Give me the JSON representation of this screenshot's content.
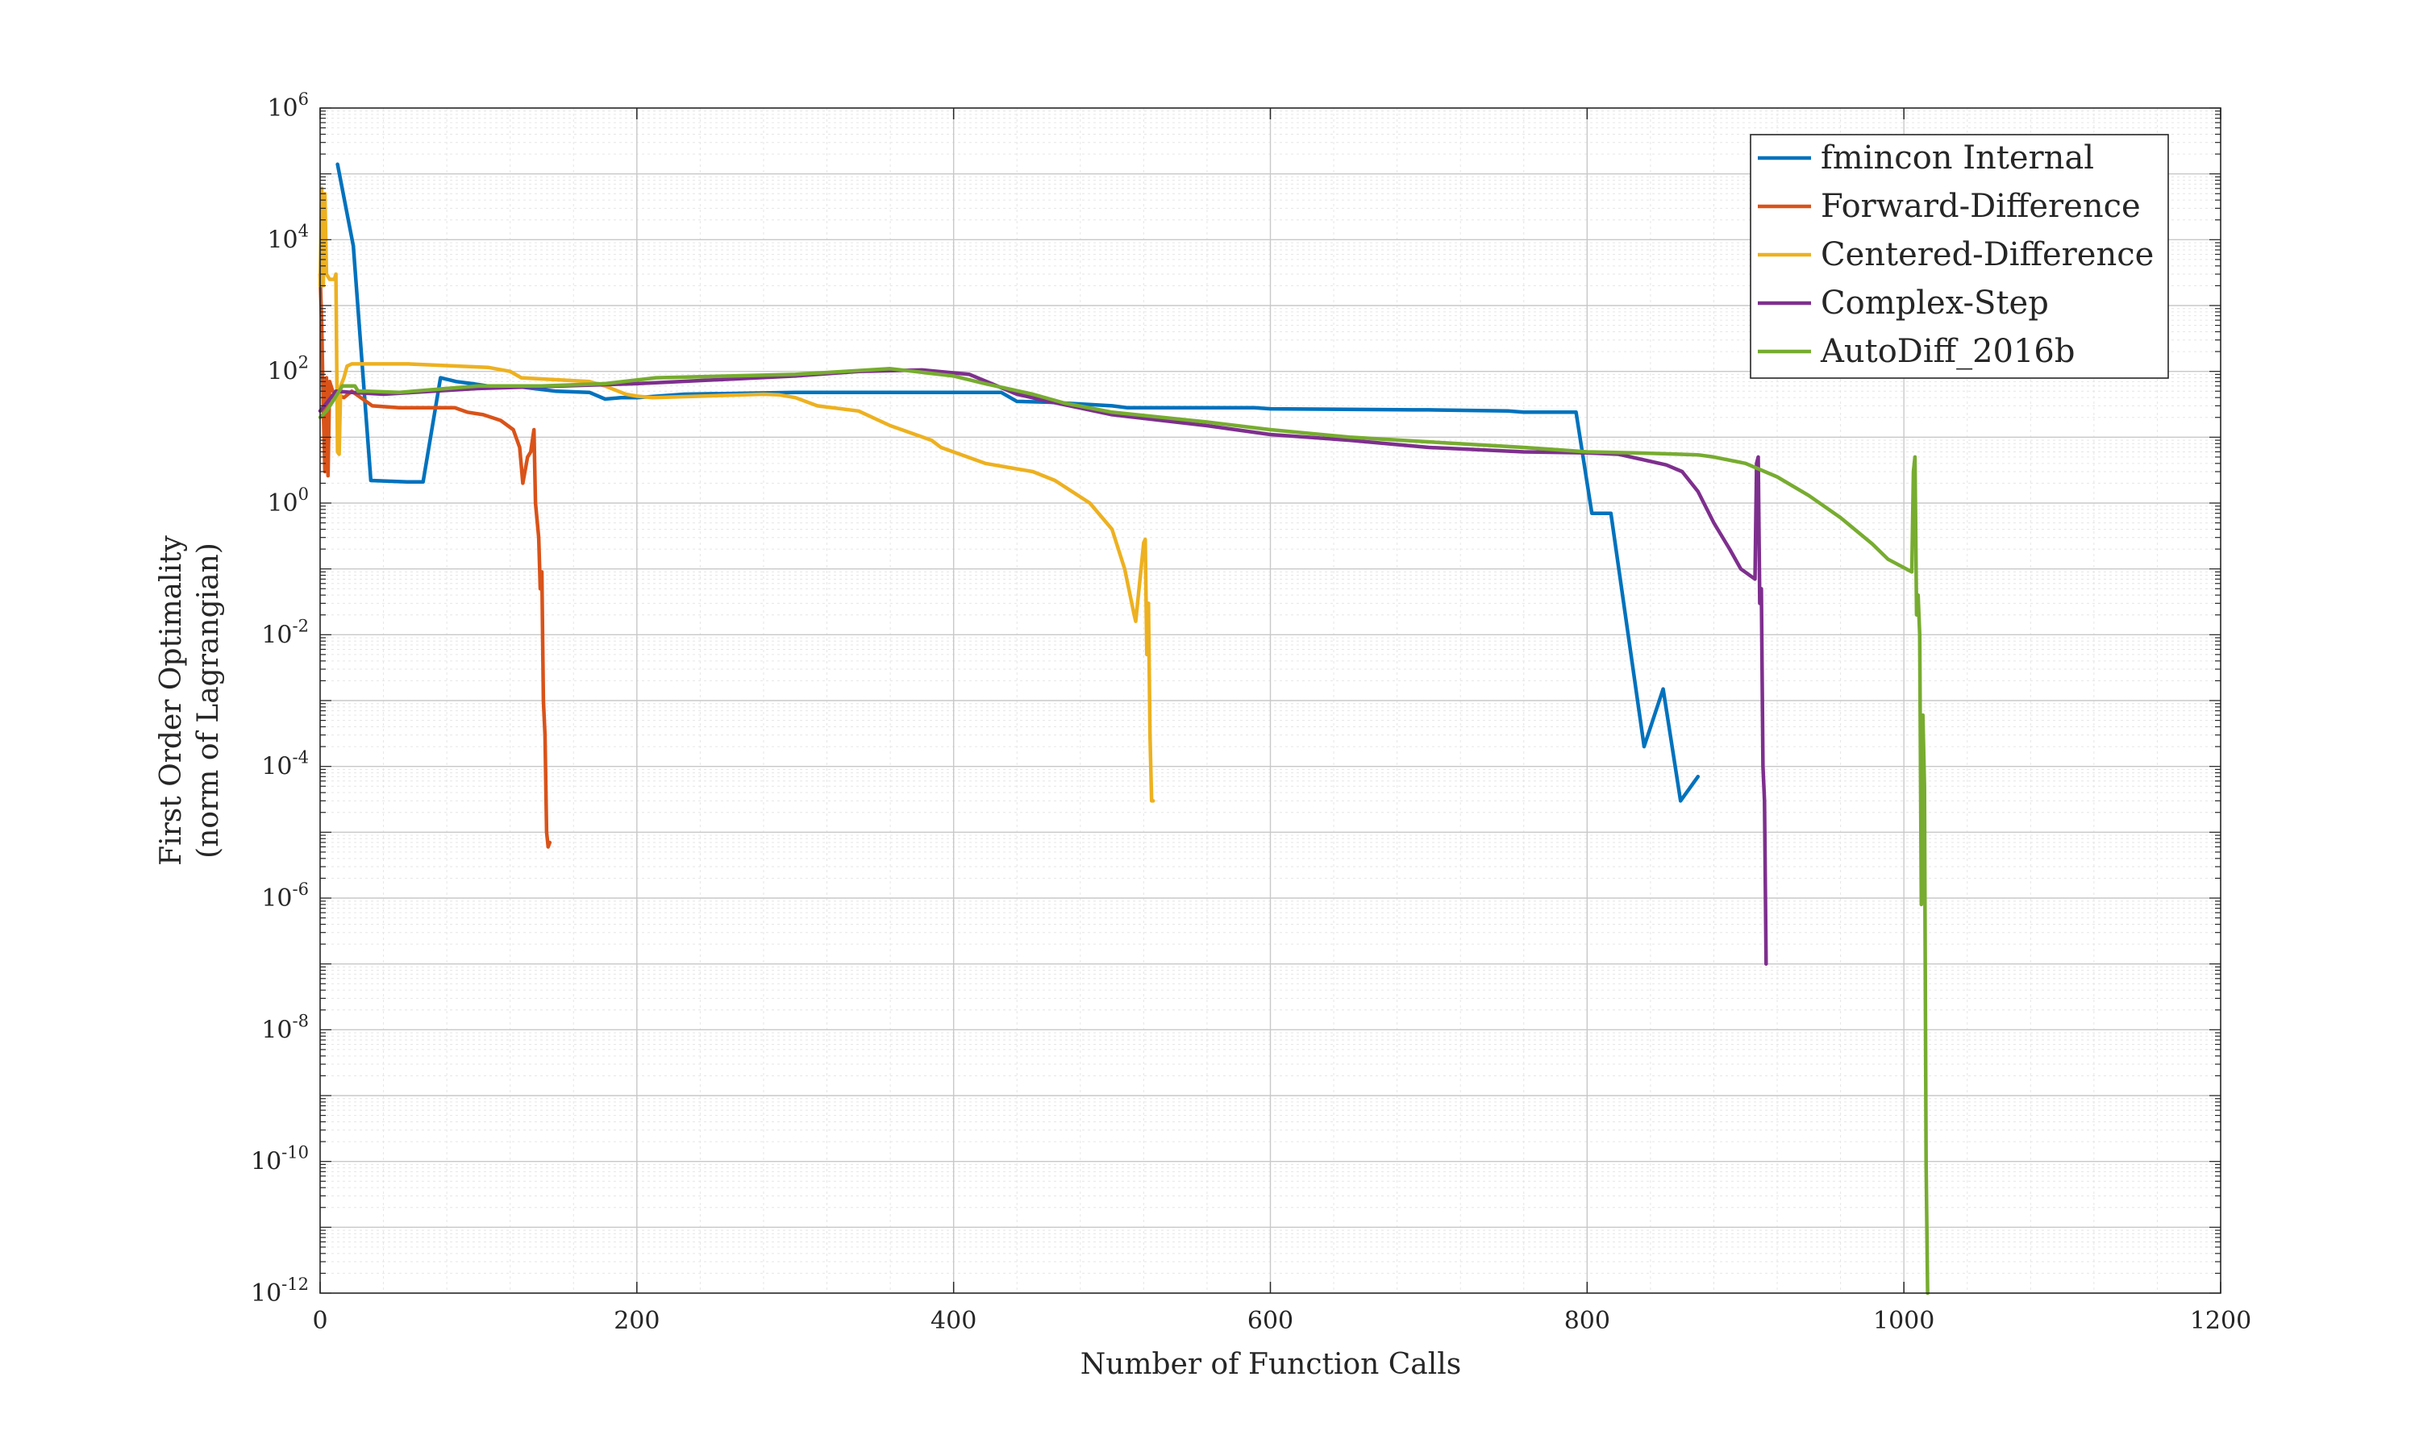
{
  "chart_data": {
    "type": "line",
    "xlabel": "Number of Function Calls",
    "ylabel": [
      "First Order Optimality",
      "(norm of Lagrangian)"
    ],
    "xlim": [
      0,
      1200
    ],
    "ylim": [
      1e-12,
      1000000.0
    ],
    "yscale": "log",
    "grid": true,
    "minor_grid": true,
    "legend": "top-right",
    "x_ticks": [
      0,
      200,
      400,
      600,
      800,
      1000,
      1200
    ],
    "y_ticks": [
      {
        "base": "10",
        "exp": "6",
        "value": 1000000.0
      },
      {
        "base": "10",
        "exp": "4",
        "value": 10000.0
      },
      {
        "base": "10",
        "exp": "2",
        "value": 100.0
      },
      {
        "base": "10",
        "exp": "0",
        "value": 1.0
      },
      {
        "base": "10",
        "exp": "-2",
        "value": 0.01
      },
      {
        "base": "10",
        "exp": "-4",
        "value": 0.0001
      },
      {
        "base": "10",
        "exp": "-6",
        "value": 1e-06
      },
      {
        "base": "10",
        "exp": "-8",
        "value": 1e-08
      },
      {
        "base": "10",
        "exp": "-10",
        "value": 1e-10
      },
      {
        "base": "10",
        "exp": "-12",
        "value": 1e-12
      }
    ],
    "series": [
      {
        "name": "fmincon Internal",
        "color": "#0072BD",
        "points": [
          [
            11,
            140000
          ],
          [
            21,
            8000
          ],
          [
            32,
            2.2
          ],
          [
            55,
            2.1
          ],
          [
            65,
            2.1
          ],
          [
            76,
            80
          ],
          [
            86,
            70
          ],
          [
            96,
            65
          ],
          [
            106,
            60
          ],
          [
            127,
            58
          ],
          [
            149,
            50
          ],
          [
            170,
            48
          ],
          [
            180,
            38
          ],
          [
            190,
            40
          ],
          [
            200,
            40
          ],
          [
            230,
            45
          ],
          [
            300,
            48
          ],
          [
            430,
            48
          ],
          [
            440,
            35
          ],
          [
            460,
            34
          ],
          [
            500,
            30
          ],
          [
            510,
            28
          ],
          [
            590,
            28
          ],
          [
            600,
            27
          ],
          [
            690,
            26
          ],
          [
            700,
            26
          ],
          [
            750,
            25
          ],
          [
            760,
            24
          ],
          [
            793,
            24
          ],
          [
            803,
            0.7
          ],
          [
            815,
            0.7
          ],
          [
            836,
            0.0002
          ],
          [
            848,
            0.0015
          ],
          [
            859,
            3e-05
          ],
          [
            870,
            7e-05
          ]
        ]
      },
      {
        "name": "Forward-Difference",
        "color": "#D95319",
        "points": [
          [
            0,
            3000
          ],
          [
            1,
            500
          ],
          [
            2,
            30
          ],
          [
            3,
            3
          ],
          [
            4,
            80
          ],
          [
            5,
            2.6
          ],
          [
            6,
            70
          ],
          [
            8,
            50
          ],
          [
            10,
            45
          ],
          [
            15,
            40
          ],
          [
            20,
            50
          ],
          [
            33,
            30
          ],
          [
            50,
            28
          ],
          [
            85,
            28
          ],
          [
            93,
            24
          ],
          [
            103,
            22
          ],
          [
            114,
            18
          ],
          [
            122,
            13
          ],
          [
            126,
            7
          ],
          [
            128,
            2
          ],
          [
            131,
            5
          ],
          [
            133,
            6
          ],
          [
            135,
            13
          ],
          [
            136,
            1
          ],
          [
            138,
            0.3
          ],
          [
            139,
            0.05
          ],
          [
            140,
            0.09
          ],
          [
            141,
            0.001
          ],
          [
            142,
            0.0003
          ],
          [
            143,
            1e-05
          ],
          [
            144,
            6e-06
          ],
          [
            145,
            7e-06
          ]
        ]
      },
      {
        "name": "Centered-Difference",
        "color": "#EDB120",
        "points": [
          [
            0,
            2000
          ],
          [
            1,
            60000
          ],
          [
            2,
            2000
          ],
          [
            3,
            50000
          ],
          [
            4,
            3000
          ],
          [
            6,
            2500
          ],
          [
            9,
            2500
          ],
          [
            10,
            3000
          ],
          [
            11,
            6
          ],
          [
            12,
            5.5
          ],
          [
            13,
            60
          ],
          [
            15,
            80
          ],
          [
            17,
            120
          ],
          [
            20,
            130
          ],
          [
            56,
            130
          ],
          [
            106,
            115
          ],
          [
            120,
            100
          ],
          [
            127,
            80
          ],
          [
            170,
            70
          ],
          [
            180,
            60
          ],
          [
            193,
            45
          ],
          [
            200,
            42
          ],
          [
            210,
            40
          ],
          [
            280,
            45
          ],
          [
            290,
            44
          ],
          [
            300,
            40
          ],
          [
            314,
            30
          ],
          [
            340,
            25
          ],
          [
            360,
            15
          ],
          [
            386,
            9
          ],
          [
            392,
            7
          ],
          [
            420,
            4
          ],
          [
            450,
            3
          ],
          [
            464,
            2.2
          ],
          [
            486,
            1
          ],
          [
            500,
            0.4
          ],
          [
            508,
            0.1
          ],
          [
            514,
            0.02
          ],
          [
            515,
            0.016
          ],
          [
            520,
            0.25
          ],
          [
            521,
            0.28
          ],
          [
            522,
            0.005
          ],
          [
            523,
            0.03
          ],
          [
            524,
            0.0003
          ],
          [
            525,
            3e-05
          ],
          [
            526,
            3e-05
          ]
        ]
      },
      {
        "name": "Complex-Step",
        "color": "#7E2F8E",
        "points": [
          [
            0,
            25
          ],
          [
            5,
            35
          ],
          [
            10,
            50
          ],
          [
            20,
            48
          ],
          [
            40,
            45
          ],
          [
            100,
            55
          ],
          [
            200,
            65
          ],
          [
            300,
            85
          ],
          [
            340,
            100
          ],
          [
            380,
            105
          ],
          [
            410,
            90
          ],
          [
            440,
            45
          ],
          [
            460,
            35
          ],
          [
            500,
            22
          ],
          [
            560,
            15
          ],
          [
            600,
            11
          ],
          [
            650,
            9
          ],
          [
            700,
            7
          ],
          [
            760,
            6
          ],
          [
            800,
            5.8
          ],
          [
            820,
            5.5
          ],
          [
            850,
            3.8
          ],
          [
            860,
            3
          ],
          [
            870,
            1.5
          ],
          [
            880,
            0.5
          ],
          [
            890,
            0.2
          ],
          [
            897,
            0.1
          ],
          [
            906,
            0.07
          ],
          [
            907,
            4
          ],
          [
            908,
            5
          ],
          [
            909,
            0.03
          ],
          [
            910,
            0.05
          ],
          [
            911,
            0.0001
          ],
          [
            912,
            3e-05
          ],
          [
            913,
            1e-07
          ]
        ]
      },
      {
        "name": "AutoDiff_2016b",
        "color": "#77AC30",
        "points": [
          [
            0,
            20
          ],
          [
            4,
            25
          ],
          [
            8,
            35
          ],
          [
            14,
            60
          ],
          [
            22,
            60
          ],
          [
            24,
            50
          ],
          [
            30,
            50
          ],
          [
            50,
            48
          ],
          [
            80,
            55
          ],
          [
            100,
            60
          ],
          [
            140,
            60
          ],
          [
            180,
            65
          ],
          [
            212,
            80
          ],
          [
            300,
            90
          ],
          [
            360,
            110
          ],
          [
            400,
            85
          ],
          [
            420,
            65
          ],
          [
            450,
            45
          ],
          [
            470,
            33
          ],
          [
            500,
            24
          ],
          [
            560,
            17
          ],
          [
            600,
            13
          ],
          [
            650,
            10
          ],
          [
            700,
            8.5
          ],
          [
            760,
            7
          ],
          [
            800,
            6
          ],
          [
            830,
            5.8
          ],
          [
            850,
            5.6
          ],
          [
            870,
            5.4
          ],
          [
            880,
            5
          ],
          [
            900,
            4
          ],
          [
            920,
            2.5
          ],
          [
            940,
            1.3
          ],
          [
            960,
            0.6
          ],
          [
            980,
            0.24
          ],
          [
            990,
            0.14
          ],
          [
            1005,
            0.09
          ],
          [
            1006,
            3
          ],
          [
            1007,
            5
          ],
          [
            1008,
            0.02
          ],
          [
            1009,
            0.04
          ],
          [
            1010,
            0.01
          ],
          [
            1011,
            8e-07
          ],
          [
            1012,
            0.0006
          ],
          [
            1013,
            5e-05
          ],
          [
            1014,
            1e-10
          ],
          [
            1015,
            2e-13
          ]
        ]
      }
    ]
  }
}
